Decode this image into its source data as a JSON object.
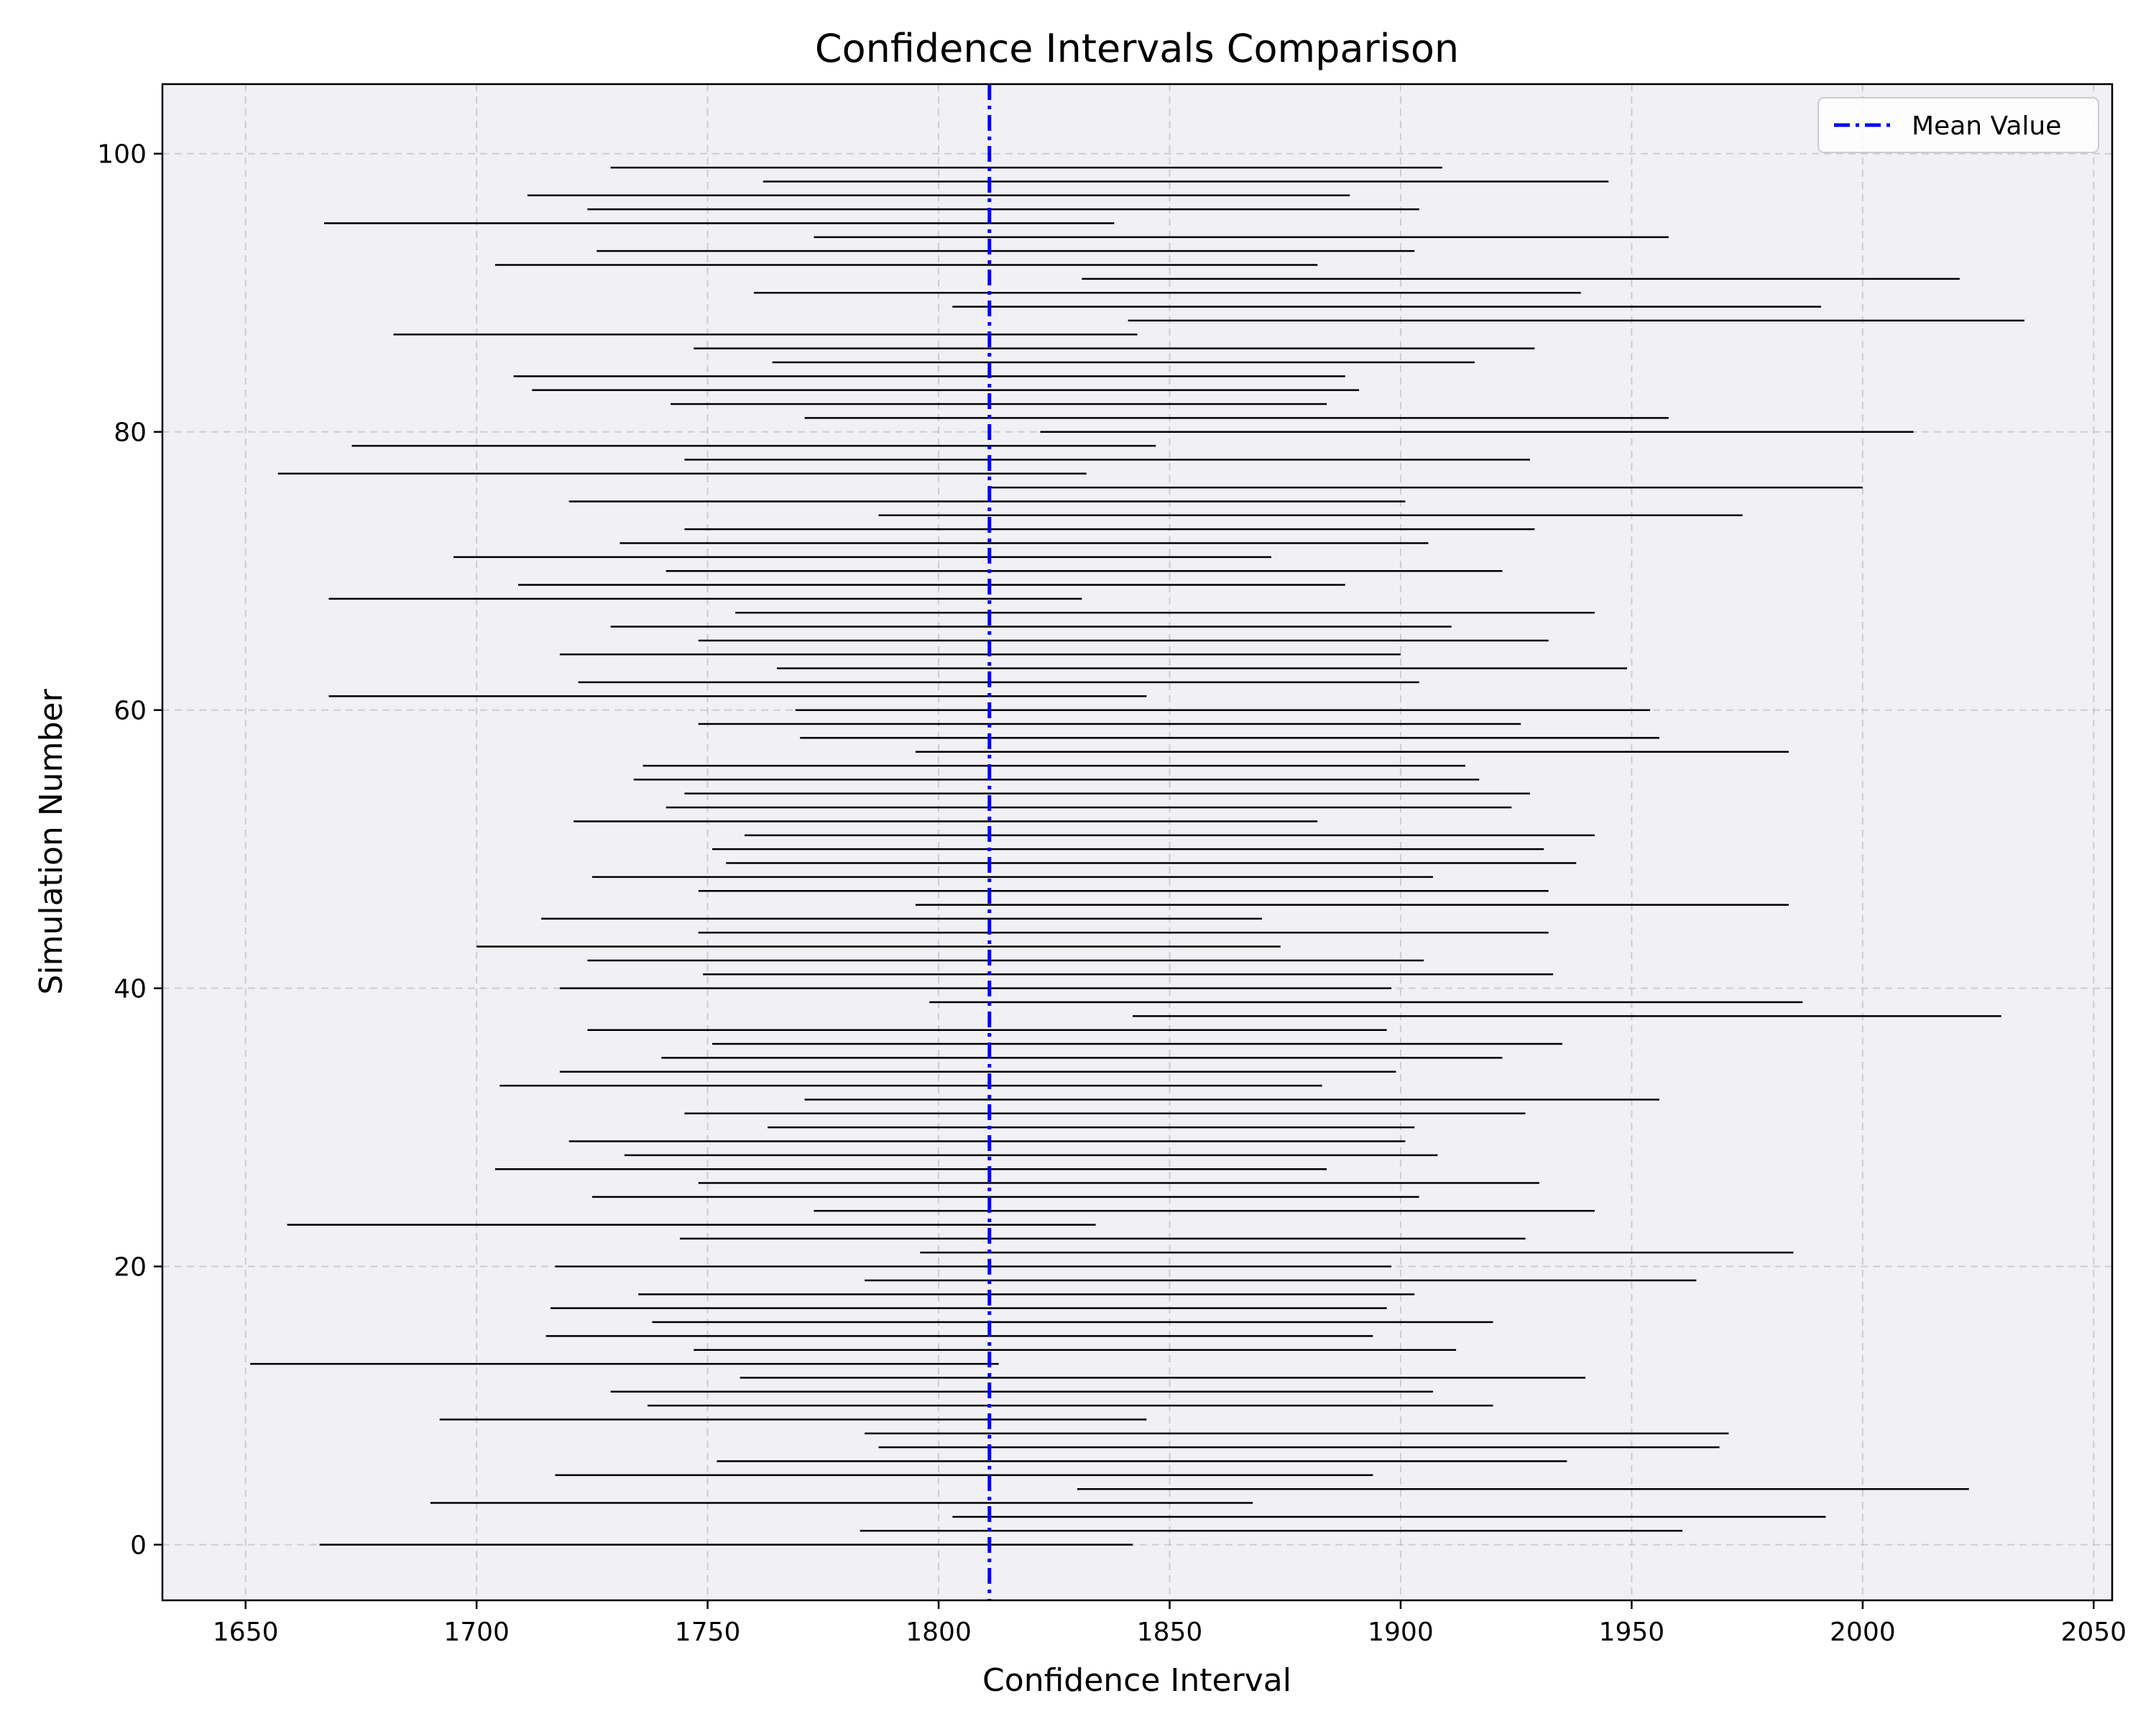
{
  "chart_data": {
    "type": "interval",
    "title": "Confidence Intervals Comparison",
    "xlabel": "Confidence Interval",
    "ylabel": "Simulation Number",
    "xlim": [
      1632,
      2054
    ],
    "ylim": [
      -4,
      105
    ],
    "x_ticks": [
      1650,
      1700,
      1750,
      1800,
      1850,
      1900,
      1950,
      2000,
      2050
    ],
    "y_ticks": [
      0,
      20,
      40,
      60,
      80,
      100
    ],
    "grid": true,
    "legend": {
      "position": "top-right",
      "entries": [
        "Mean Value"
      ]
    },
    "mean_line": {
      "name": "Mean Value",
      "x": 1811,
      "color": "#0000ff"
    },
    "interval_color": "#000000",
    "background_color": "#f0f0f5",
    "intervals": [
      [
        1666,
        1842
      ],
      [
        1783,
        1961
      ],
      [
        1803,
        1992
      ],
      [
        1690,
        1868
      ],
      [
        1830,
        2023
      ],
      [
        1717,
        1894
      ],
      [
        1752,
        1936
      ],
      [
        1787,
        1969
      ],
      [
        1784,
        1971
      ],
      [
        1692,
        1845
      ],
      [
        1737,
        1920
      ],
      [
        1729,
        1907
      ],
      [
        1757,
        1940
      ],
      [
        1651,
        1813
      ],
      [
        1747,
        1912
      ],
      [
        1715,
        1894
      ],
      [
        1738,
        1920
      ],
      [
        1716,
        1897
      ],
      [
        1735,
        1903
      ],
      [
        1784,
        1964
      ],
      [
        1717,
        1898
      ],
      [
        1796,
        1985
      ],
      [
        1744,
        1927
      ],
      [
        1659,
        1834
      ],
      [
        1773,
        1942
      ],
      [
        1725,
        1904
      ],
      [
        1748,
        1930
      ],
      [
        1704,
        1884
      ],
      [
        1732,
        1908
      ],
      [
        1720,
        1901
      ],
      [
        1763,
        1903
      ],
      [
        1745,
        1927
      ],
      [
        1771,
        1956
      ],
      [
        1705,
        1883
      ],
      [
        1718,
        1899
      ],
      [
        1740,
        1922
      ],
      [
        1751,
        1935
      ],
      [
        1724,
        1897
      ],
      [
        1842,
        2030
      ],
      [
        1798,
        1987
      ],
      [
        1718,
        1898
      ],
      [
        1749,
        1933
      ],
      [
        1724,
        1905
      ],
      [
        1700,
        1874
      ],
      [
        1748,
        1932
      ],
      [
        1714,
        1870
      ],
      [
        1795,
        1984
      ],
      [
        1748,
        1932
      ],
      [
        1725,
        1907
      ],
      [
        1754,
        1938
      ],
      [
        1751,
        1931
      ],
      [
        1758,
        1942
      ],
      [
        1721,
        1882
      ],
      [
        1741,
        1924
      ],
      [
        1745,
        1928
      ],
      [
        1734,
        1917
      ],
      [
        1736,
        1914
      ],
      [
        1795,
        1984
      ],
      [
        1770,
        1956
      ],
      [
        1748,
        1926
      ],
      [
        1769,
        1954
      ],
      [
        1668,
        1845
      ],
      [
        1722,
        1904
      ],
      [
        1765,
        1949
      ],
      [
        1718,
        1900
      ],
      [
        1748,
        1932
      ],
      [
        1729,
        1911
      ],
      [
        1756,
        1942
      ],
      [
        1668,
        1831
      ],
      [
        1709,
        1888
      ],
      [
        1741,
        1922
      ],
      [
        1695,
        1872
      ],
      [
        1731,
        1906
      ],
      [
        1745,
        1929
      ],
      [
        1787,
        1974
      ],
      [
        1720,
        1901
      ],
      [
        1811,
        2000
      ],
      [
        1657,
        1832
      ],
      [
        1745,
        1928
      ],
      [
        1673,
        1847
      ],
      [
        1822,
        2011
      ],
      [
        1771,
        1958
      ],
      [
        1742,
        1884
      ],
      [
        1712,
        1891
      ],
      [
        1708,
        1888
      ],
      [
        1764,
        1916
      ],
      [
        1747,
        1929
      ],
      [
        1682,
        1843
      ],
      [
        1841,
        2035
      ],
      [
        1803,
        1991
      ],
      [
        1760,
        1939
      ],
      [
        1831,
        2021
      ],
      [
        1704,
        1882
      ],
      [
        1726,
        1903
      ],
      [
        1773,
        1958
      ],
      [
        1667,
        1838
      ],
      [
        1724,
        1904
      ],
      [
        1711,
        1889
      ],
      [
        1762,
        1945
      ],
      [
        1729,
        1909
      ]
    ]
  }
}
